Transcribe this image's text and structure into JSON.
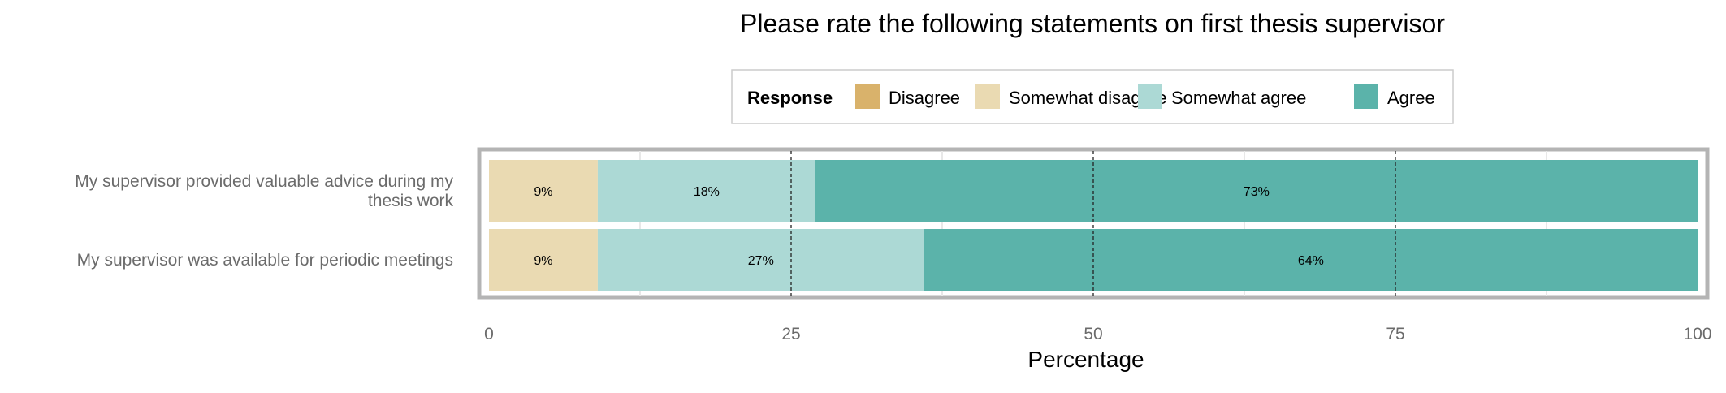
{
  "chart_data": {
    "type": "bar",
    "orientation": "horizontal",
    "stacked": true,
    "title": "Please rate the following statements on first thesis supervisor",
    "xlabel": "Percentage",
    "ylabel": "",
    "xlim": [
      0,
      100
    ],
    "x_ticks": [
      "0",
      "25",
      "50",
      "75",
      "100"
    ],
    "legend": {
      "title": "Response",
      "position": "top",
      "entries": [
        {
          "name": "Disagree",
          "color": "#d9b26b"
        },
        {
          "name": "Somewhat disagree",
          "color": "#eadab2"
        },
        {
          "name": "Somewhat agree",
          "color": "#acd9d5"
        },
        {
          "name": "Agree",
          "color": "#5bb3aa"
        }
      ]
    },
    "categories": [
      [
        "My supervisor provided valuable advice during my",
        "thesis work"
      ],
      [
        "My supervisor was available for periodic meetings"
      ]
    ],
    "series": [
      {
        "name": "Disagree",
        "values": [
          0,
          0
        ],
        "labels": [
          "",
          ""
        ]
      },
      {
        "name": "Somewhat disagree",
        "values": [
          9,
          9
        ],
        "labels": [
          "9%",
          "9%"
        ]
      },
      {
        "name": "Somewhat agree",
        "values": [
          18,
          27
        ],
        "labels": [
          "18%",
          "27%"
        ]
      },
      {
        "name": "Agree",
        "values": [
          73,
          64
        ],
        "labels": [
          "73%",
          "64%"
        ]
      }
    ],
    "grid": true,
    "reference_lines": [
      25,
      50,
      75
    ]
  }
}
